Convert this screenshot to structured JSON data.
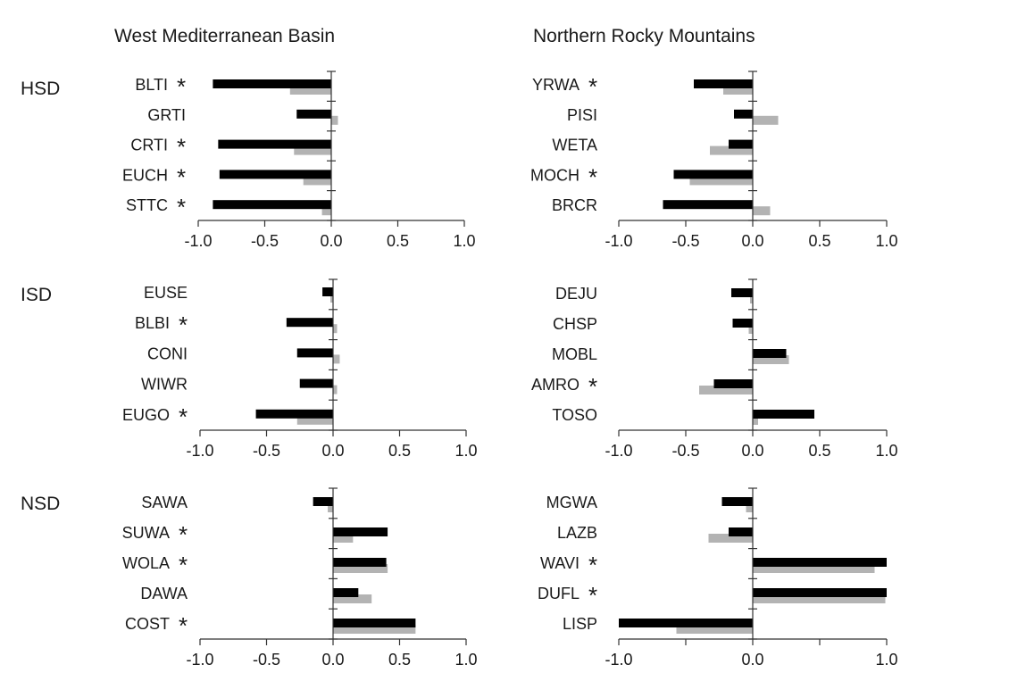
{
  "figure": {
    "columns": [
      "West Mediterranean Basin",
      "Northern Rocky Mountains"
    ],
    "rows": [
      "HSD",
      "ISD",
      "NSD"
    ],
    "significance_mark": "*",
    "colors": {
      "series_dark": "#000000",
      "series_light": "#b3b3b3",
      "axis": "#333333"
    }
  },
  "chart_data": [
    {
      "type": "bar",
      "orientation": "horizontal",
      "region": "West Mediterranean Basin",
      "group": "HSD",
      "xlim": [
        -1.0,
        1.0
      ],
      "xticks": [
        "-1.0",
        "-0.5",
        "0.0",
        "0.5",
        "1.0"
      ],
      "categories": [
        "BLTI",
        "GRTI",
        "CRTI",
        "EUCH",
        "STTC"
      ],
      "significant": [
        true,
        false,
        true,
        true,
        true
      ],
      "series": [
        {
          "values": [
            -0.89,
            -0.26,
            -0.85,
            -0.84,
            -0.89
          ]
        },
        {
          "values": [
            -0.31,
            0.05,
            -0.28,
            -0.21,
            -0.07
          ]
        }
      ]
    },
    {
      "type": "bar",
      "orientation": "horizontal",
      "region": "Northern Rocky Mountains",
      "group": "HSD",
      "xlim": [
        -1.0,
        1.0
      ],
      "xticks": [
        "-1.0",
        "-0.5",
        "0.0",
        "0.5",
        "1.0"
      ],
      "categories": [
        "YRWA",
        "PISI",
        "WETA",
        "MOCH",
        "BRCR"
      ],
      "significant": [
        true,
        false,
        false,
        true,
        false
      ],
      "series": [
        {
          "values": [
            -0.44,
            -0.14,
            -0.18,
            -0.59,
            -0.67
          ]
        },
        {
          "values": [
            -0.22,
            0.19,
            -0.32,
            -0.47,
            0.13
          ]
        }
      ]
    },
    {
      "type": "bar",
      "orientation": "horizontal",
      "region": "West Mediterranean Basin",
      "group": "ISD",
      "xlim": [
        -1.0,
        1.0
      ],
      "xticks": [
        "-1.0",
        "-0.5",
        "0.0",
        "0.5",
        "1.0"
      ],
      "categories": [
        "EUSE",
        "BLBI",
        "CONI",
        "WIWR",
        "EUGO"
      ],
      "significant": [
        false,
        true,
        false,
        false,
        true
      ],
      "series": [
        {
          "values": [
            -0.08,
            -0.35,
            -0.27,
            -0.25,
            -0.58
          ]
        },
        {
          "values": [
            -0.02,
            0.03,
            0.05,
            0.03,
            -0.27
          ]
        }
      ]
    },
    {
      "type": "bar",
      "orientation": "horizontal",
      "region": "Northern Rocky Mountains",
      "group": "ISD",
      "xlim": [
        -1.0,
        1.0
      ],
      "xticks": [
        "-1.0",
        "-0.5",
        "0.0",
        "0.5",
        "1.0"
      ],
      "categories": [
        "DEJU",
        "CHSP",
        "MOBL",
        "AMRO",
        "TOSO"
      ],
      "significant": [
        false,
        false,
        false,
        true,
        false
      ],
      "series": [
        {
          "values": [
            -0.16,
            -0.15,
            0.25,
            -0.29,
            0.46
          ]
        },
        {
          "values": [
            -0.02,
            -0.03,
            0.27,
            -0.4,
            0.04
          ]
        }
      ]
    },
    {
      "type": "bar",
      "orientation": "horizontal",
      "region": "West Mediterranean Basin",
      "group": "NSD",
      "xlim": [
        -1.0,
        1.0
      ],
      "xticks": [
        "-1.0",
        "-0.5",
        "0.0",
        "0.5",
        "1.0"
      ],
      "categories": [
        "SAWA",
        "SUWA",
        "WOLA",
        "DAWA",
        "COST"
      ],
      "significant": [
        false,
        true,
        true,
        false,
        true
      ],
      "series": [
        {
          "values": [
            -0.15,
            0.41,
            0.4,
            0.19,
            0.62
          ]
        },
        {
          "values": [
            -0.04,
            0.15,
            0.41,
            0.29,
            0.62
          ]
        }
      ]
    },
    {
      "type": "bar",
      "orientation": "horizontal",
      "region": "Northern Rocky Mountains",
      "group": "NSD",
      "xlim": [
        -1.0,
        1.0
      ],
      "xticks": [
        "-1.0",
        "",
        "0.0",
        "",
        "1.0"
      ],
      "categories": [
        "MGWA",
        "LAZB",
        "WAVI",
        "DUFL",
        "LISP"
      ],
      "significant": [
        false,
        false,
        true,
        true,
        false
      ],
      "series": [
        {
          "values": [
            -0.23,
            -0.18,
            1.0,
            1.0,
            -1.0
          ]
        },
        {
          "values": [
            -0.05,
            -0.33,
            0.91,
            0.99,
            -0.57
          ]
        }
      ]
    }
  ]
}
